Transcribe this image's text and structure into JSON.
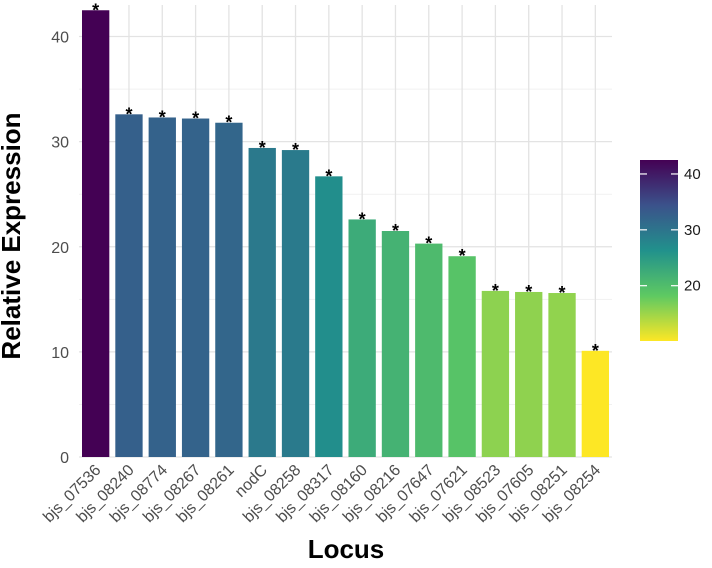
{
  "chart_data": {
    "type": "bar",
    "xlabel": "Locus",
    "ylabel": "Relative Expression",
    "ylim": [
      0,
      43
    ],
    "yticks": [
      0,
      10,
      20,
      30,
      40
    ],
    "grid": true,
    "categories": [
      "bjs_07536",
      "bjs_08240",
      "bjs_08774",
      "bjs_08267",
      "bjs_08261",
      "nodC",
      "bjs_08258",
      "bjs_08317",
      "bjs_08160",
      "bjs_08216",
      "bjs_07647",
      "bjs_07621",
      "bjs_08523",
      "bjs_07605",
      "bjs_08251",
      "bjs_08254"
    ],
    "values": [
      42.5,
      32.6,
      32.3,
      32.2,
      31.8,
      29.4,
      29.2,
      26.7,
      22.6,
      21.5,
      20.3,
      19.1,
      15.8,
      15.7,
      15.6,
      10.1
    ],
    "annotations": [
      "*",
      "*",
      "*",
      "*",
      "*",
      "*",
      "*",
      "*",
      "*",
      "*",
      "*",
      "*",
      "*",
      "*",
      "*",
      "*"
    ],
    "colorbar": {
      "position": "right",
      "min": 10.1,
      "max": 42.5,
      "ticks": [
        20,
        30,
        40
      ],
      "colormap": "viridis"
    }
  }
}
